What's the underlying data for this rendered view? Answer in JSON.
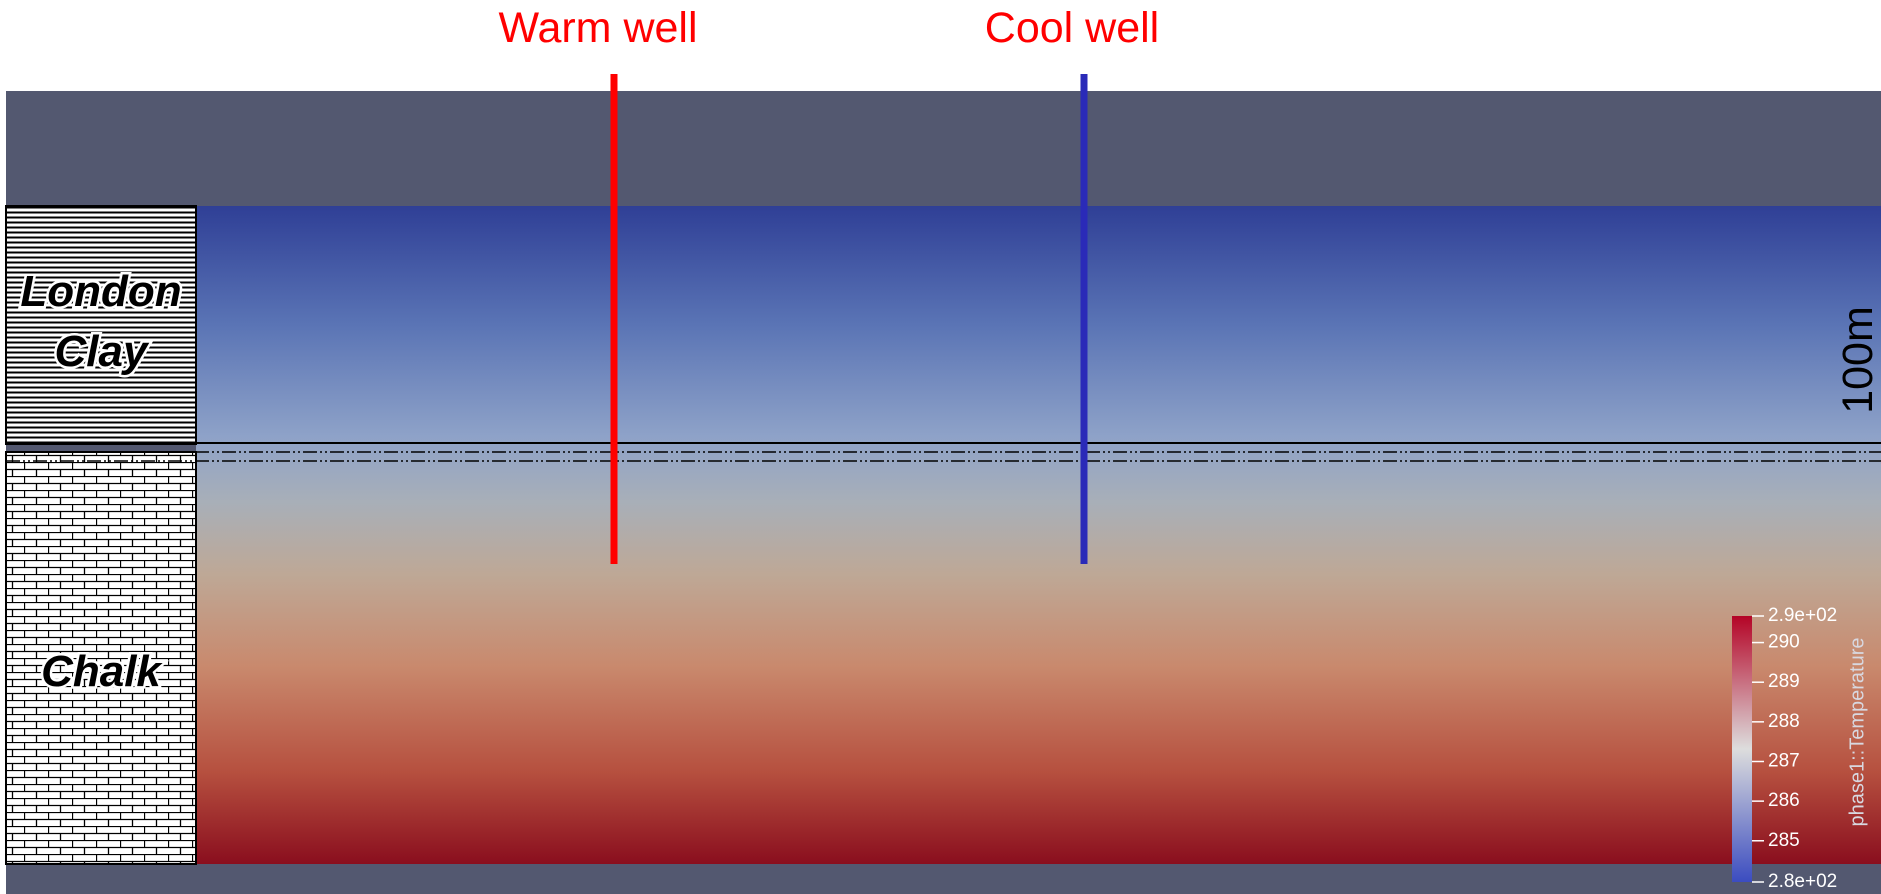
{
  "wells": [
    {
      "label": "Warm well",
      "color": "#ff0000"
    },
    {
      "label": "Cool well",
      "color": "#2a2ab8"
    }
  ],
  "strata": [
    {
      "lines": [
        "London",
        "Clay"
      ]
    },
    {
      "lines": [
        "Chalk"
      ]
    }
  ],
  "scale_label": "100m",
  "colorbar": {
    "title": "phase1::Temperature",
    "range": [
      283.96,
      290.67
    ],
    "ticks": [
      {
        "value": 290.67,
        "label": "2.9e+02"
      },
      290,
      289,
      288,
      287,
      286,
      285,
      {
        "value": 283.96,
        "label": "2.8e+02"
      }
    ]
  }
}
